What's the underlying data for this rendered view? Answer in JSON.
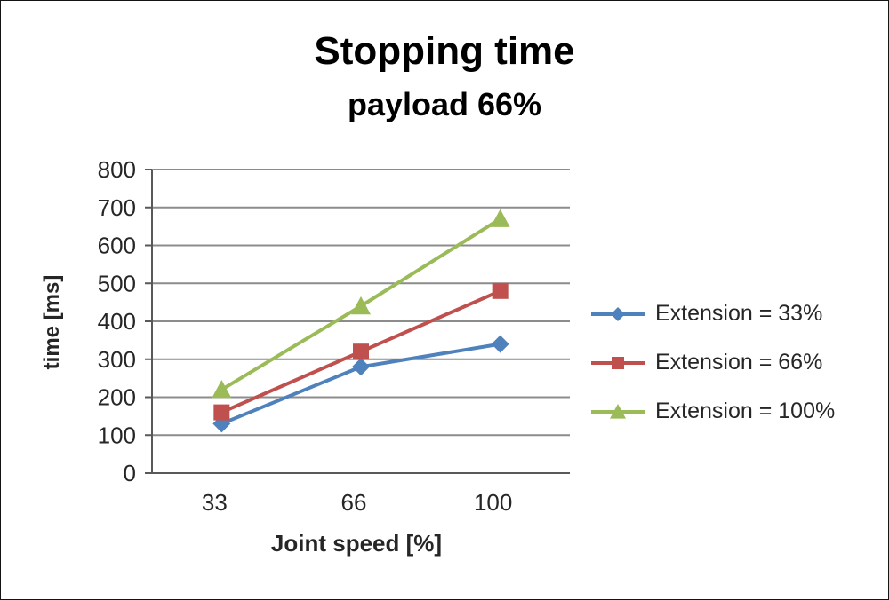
{
  "chart_data": {
    "type": "line",
    "title": "Stopping time",
    "subtitle": "payload 66%",
    "xlabel": "Joint speed [%]",
    "ylabel": "time [ms]",
    "categories": [
      "33",
      "66",
      "100"
    ],
    "series": [
      {
        "name": "Extension = 33%",
        "color": "#4f81bd",
        "marker": "diamond",
        "values": [
          130,
          280,
          340
        ]
      },
      {
        "name": "Extension = 66%",
        "color": "#c0504d",
        "marker": "square",
        "values": [
          160,
          320,
          480
        ]
      },
      {
        "name": "Extension = 100%",
        "color": "#9bbb59",
        "marker": "triangle",
        "values": [
          220,
          440,
          670
        ]
      }
    ],
    "ylim": [
      0,
      800
    ],
    "ytick_step": 100,
    "grid": true,
    "legend_position": "right",
    "grid_color": "#8c8c8c",
    "axis_color": "#595959",
    "text_color": "#262626"
  }
}
